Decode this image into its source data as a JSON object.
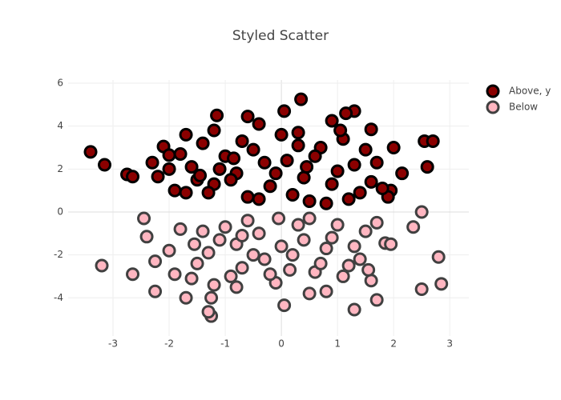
{
  "chart_data": {
    "type": "scatter",
    "title": "Styled Scatter",
    "xlim": [
      -3.8,
      3.34
    ],
    "ylim": [
      -5.78,
      6.15
    ],
    "xticks": [
      -3,
      -2,
      -1,
      0,
      1,
      2,
      3
    ],
    "yticks": [
      -4,
      -2,
      0,
      2,
      4,
      6
    ],
    "grid": true,
    "legend": "top-right",
    "series": [
      {
        "name": "Above, y",
        "color": "#8b0000",
        "stroke": "#000000",
        "x": [
          -3.4,
          -3.15,
          -2.75,
          -2.65,
          0.35,
          0.05,
          -1.15,
          1.3,
          1.15,
          2.55,
          2.7,
          2.6,
          2.0,
          1.95,
          2.15,
          -2.1,
          -2.0,
          -1.7,
          -0.4,
          -0.6,
          0.3,
          0.9,
          1.6,
          -2.3,
          -2.2,
          -1.9,
          -1.6,
          -1.4,
          -1.2,
          -1.0,
          -0.8,
          -0.5,
          -0.2,
          0.1,
          0.4,
          0.7,
          1.0,
          1.3,
          1.6,
          1.9,
          -1.8,
          -1.5,
          -1.1,
          -0.7,
          -0.3,
          0.2,
          0.6,
          1.1,
          1.5,
          1.8,
          -1.3,
          -0.9,
          -0.4,
          0.0,
          0.5,
          0.9,
          1.4,
          -2.0,
          -1.7,
          -1.2,
          -0.6,
          0.3,
          0.8,
          1.2,
          1.7,
          -0.1,
          0.45,
          -0.85,
          1.05,
          -1.45
        ],
        "y": [
          2.8,
          2.2,
          1.75,
          1.65,
          5.25,
          4.7,
          4.5,
          4.7,
          4.6,
          3.3,
          3.3,
          2.1,
          3.0,
          1.0,
          1.8,
          3.05,
          2.65,
          3.6,
          4.1,
          4.45,
          3.7,
          4.25,
          3.85,
          2.3,
          1.65,
          1.0,
          2.1,
          3.2,
          1.3,
          2.6,
          1.8,
          2.9,
          1.2,
          2.4,
          1.6,
          3.0,
          1.9,
          2.2,
          1.4,
          0.7,
          2.7,
          1.5,
          2.0,
          3.3,
          2.3,
          0.8,
          2.6,
          3.4,
          2.9,
          1.1,
          0.9,
          1.5,
          0.6,
          3.6,
          0.5,
          1.3,
          0.9,
          2.0,
          0.9,
          3.8,
          0.7,
          3.1,
          0.4,
          0.6,
          2.3,
          1.8,
          2.1,
          2.5,
          3.8,
          1.7
        ]
      },
      {
        "name": "Below",
        "color": "#ffb6c1",
        "stroke": "#404040",
        "x": [
          -3.2,
          -2.65,
          -2.4,
          -2.45,
          -2.25,
          -2.25,
          -1.25,
          -1.3,
          0.05,
          1.3,
          2.85,
          2.8,
          2.5,
          2.5,
          2.35,
          1.85,
          1.7,
          1.95,
          -1.7,
          -1.25,
          -0.8,
          0.5,
          -2.0,
          -1.8,
          -1.5,
          -1.1,
          -0.9,
          -0.6,
          -0.3,
          0.0,
          0.3,
          0.6,
          0.9,
          1.2,
          1.5,
          -1.6,
          -1.3,
          -1.0,
          -0.7,
          -0.4,
          -0.1,
          0.2,
          0.5,
          0.8,
          1.1,
          1.4,
          1.7,
          -1.9,
          -1.4,
          -0.8,
          -0.2,
          0.4,
          1.0,
          1.6,
          -1.2,
          -0.5,
          0.7,
          1.3,
          -0.05,
          0.8,
          -0.7,
          0.15,
          -1.55,
          1.55
        ],
        "y": [
          -2.5,
          -2.9,
          -1.15,
          -0.3,
          -3.7,
          -2.3,
          -4.85,
          -4.65,
          -4.35,
          -4.55,
          -3.35,
          -2.1,
          -3.6,
          0.0,
          -0.7,
          -1.45,
          -4.1,
          -1.5,
          -4.0,
          -4.0,
          -3.5,
          -3.8,
          -1.8,
          -0.8,
          -2.4,
          -1.3,
          -3.0,
          -0.4,
          -2.2,
          -1.6,
          -0.6,
          -2.8,
          -1.2,
          -2.5,
          -0.9,
          -3.1,
          -1.9,
          -0.7,
          -2.6,
          -1.0,
          -3.3,
          -2.0,
          -0.3,
          -1.7,
          -3.0,
          -2.2,
          -0.5,
          -2.9,
          -0.9,
          -1.5,
          -2.9,
          -1.3,
          -0.6,
          -3.2,
          -3.4,
          -2.0,
          -2.4,
          -1.6,
          -0.3,
          -3.7,
          -1.1,
          -2.7,
          -1.5,
          -2.7
        ]
      }
    ]
  }
}
